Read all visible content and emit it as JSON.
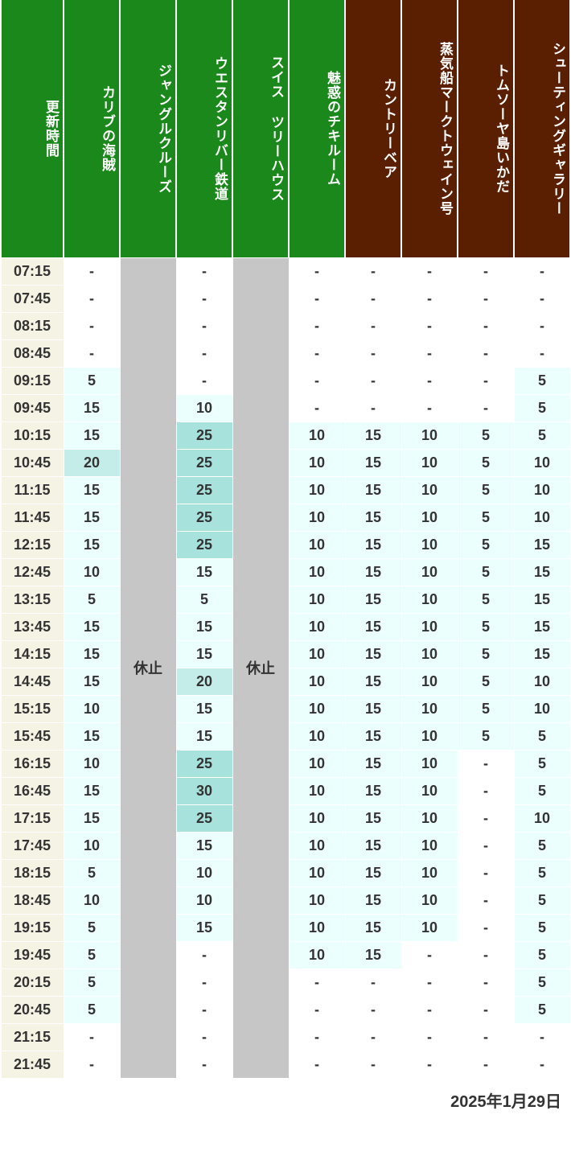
{
  "date_label": "2025年1月29日",
  "closed_label": "休止",
  "colors": {
    "header_green": "#1a881a",
    "header_brown": "#5a1e00",
    "time_col_bg": "#f5f3e3",
    "closed_bg": "#c6c6c6",
    "text_white": "#ffffff",
    "text_dark": "#333333"
  },
  "wait_thresholds": {
    "white_max": 0,
    "lightest_max": 19,
    "light_max": 24,
    "medium_max": 30
  },
  "wait_colors": {
    "white": "#ffffff",
    "lightest": "#ebfffd",
    "light": "#c4ece8",
    "medium": "#a8e2dc"
  },
  "columns": [
    {
      "key": "time",
      "label": "更新時間",
      "color": "#1a881a",
      "type": "time"
    },
    {
      "key": "caribbean",
      "label": "カリブの海賊",
      "color": "#1a881a",
      "type": "data"
    },
    {
      "key": "jungle",
      "label": "ジャングルクルーズ",
      "color": "#1a881a",
      "type": "closed"
    },
    {
      "key": "western",
      "label": "ウエスタンリバー鉄道",
      "color": "#1a881a",
      "type": "data"
    },
    {
      "key": "swiss",
      "label": "スイス ツリーハウス",
      "color": "#1a881a",
      "type": "closed"
    },
    {
      "key": "tiki",
      "label": "魅惑のチキルーム",
      "color": "#1a881a",
      "type": "data"
    },
    {
      "key": "country",
      "label": "カントリーベア",
      "color": "#5a1e00",
      "type": "data"
    },
    {
      "key": "marktwain",
      "label": "蒸気船マークトウェイン号",
      "color": "#5a1e00",
      "type": "data"
    },
    {
      "key": "tomsawyer",
      "label": "トムソーヤ島いかだ",
      "color": "#5a1e00",
      "type": "data"
    },
    {
      "key": "shooting",
      "label": "シューティングギャラリー",
      "color": "#5a1e00",
      "type": "data"
    }
  ],
  "times": [
    "07:15",
    "07:45",
    "08:15",
    "08:45",
    "09:15",
    "09:45",
    "10:15",
    "10:45",
    "11:15",
    "11:45",
    "12:15",
    "12:45",
    "13:15",
    "13:45",
    "14:15",
    "14:45",
    "15:15",
    "15:45",
    "16:15",
    "16:45",
    "17:15",
    "17:45",
    "18:15",
    "18:45",
    "19:15",
    "19:45",
    "20:15",
    "20:45",
    "21:15",
    "21:45"
  ],
  "data": {
    "caribbean": [
      "-",
      "-",
      "-",
      "-",
      "5",
      "15",
      "15",
      "20",
      "15",
      "15",
      "15",
      "10",
      "5",
      "15",
      "15",
      "15",
      "10",
      "15",
      "10",
      "15",
      "15",
      "10",
      "5",
      "10",
      "5",
      "5",
      "5",
      "5",
      "-",
      "-"
    ],
    "western": [
      "-",
      "-",
      "-",
      "-",
      "-",
      "10",
      "25",
      "25",
      "25",
      "25",
      "25",
      "15",
      "5",
      "15",
      "15",
      "20",
      "15",
      "15",
      "25",
      "30",
      "25",
      "15",
      "10",
      "10",
      "15",
      "-",
      "-",
      "-",
      "-",
      "-"
    ],
    "tiki": [
      "-",
      "-",
      "-",
      "-",
      "-",
      "-",
      "10",
      "10",
      "10",
      "10",
      "10",
      "10",
      "10",
      "10",
      "10",
      "10",
      "10",
      "10",
      "10",
      "10",
      "10",
      "10",
      "10",
      "10",
      "10",
      "10",
      "-",
      "-",
      "-",
      "-"
    ],
    "country": [
      "-",
      "-",
      "-",
      "-",
      "-",
      "-",
      "15",
      "15",
      "15",
      "15",
      "15",
      "15",
      "15",
      "15",
      "15",
      "15",
      "15",
      "15",
      "15",
      "15",
      "15",
      "15",
      "15",
      "15",
      "15",
      "15",
      "-",
      "-",
      "-",
      "-"
    ],
    "marktwain": [
      "-",
      "-",
      "-",
      "-",
      "-",
      "-",
      "10",
      "10",
      "10",
      "10",
      "10",
      "10",
      "10",
      "10",
      "10",
      "10",
      "10",
      "10",
      "10",
      "10",
      "10",
      "10",
      "10",
      "10",
      "10",
      "-",
      "-",
      "-",
      "-",
      "-"
    ],
    "tomsawyer": [
      "-",
      "-",
      "-",
      "-",
      "-",
      "-",
      "5",
      "5",
      "5",
      "5",
      "5",
      "5",
      "5",
      "5",
      "5",
      "5",
      "5",
      "5",
      "-",
      "-",
      "-",
      "-",
      "-",
      "-",
      "-",
      "-",
      "-",
      "-",
      "-",
      "-"
    ],
    "shooting": [
      "-",
      "-",
      "-",
      "-",
      "5",
      "5",
      "5",
      "10",
      "10",
      "10",
      "15",
      "15",
      "15",
      "15",
      "15",
      "10",
      "10",
      "5",
      "5",
      "5",
      "10",
      "5",
      "5",
      "5",
      "5",
      "5",
      "5",
      "5",
      "-",
      "-"
    ]
  }
}
